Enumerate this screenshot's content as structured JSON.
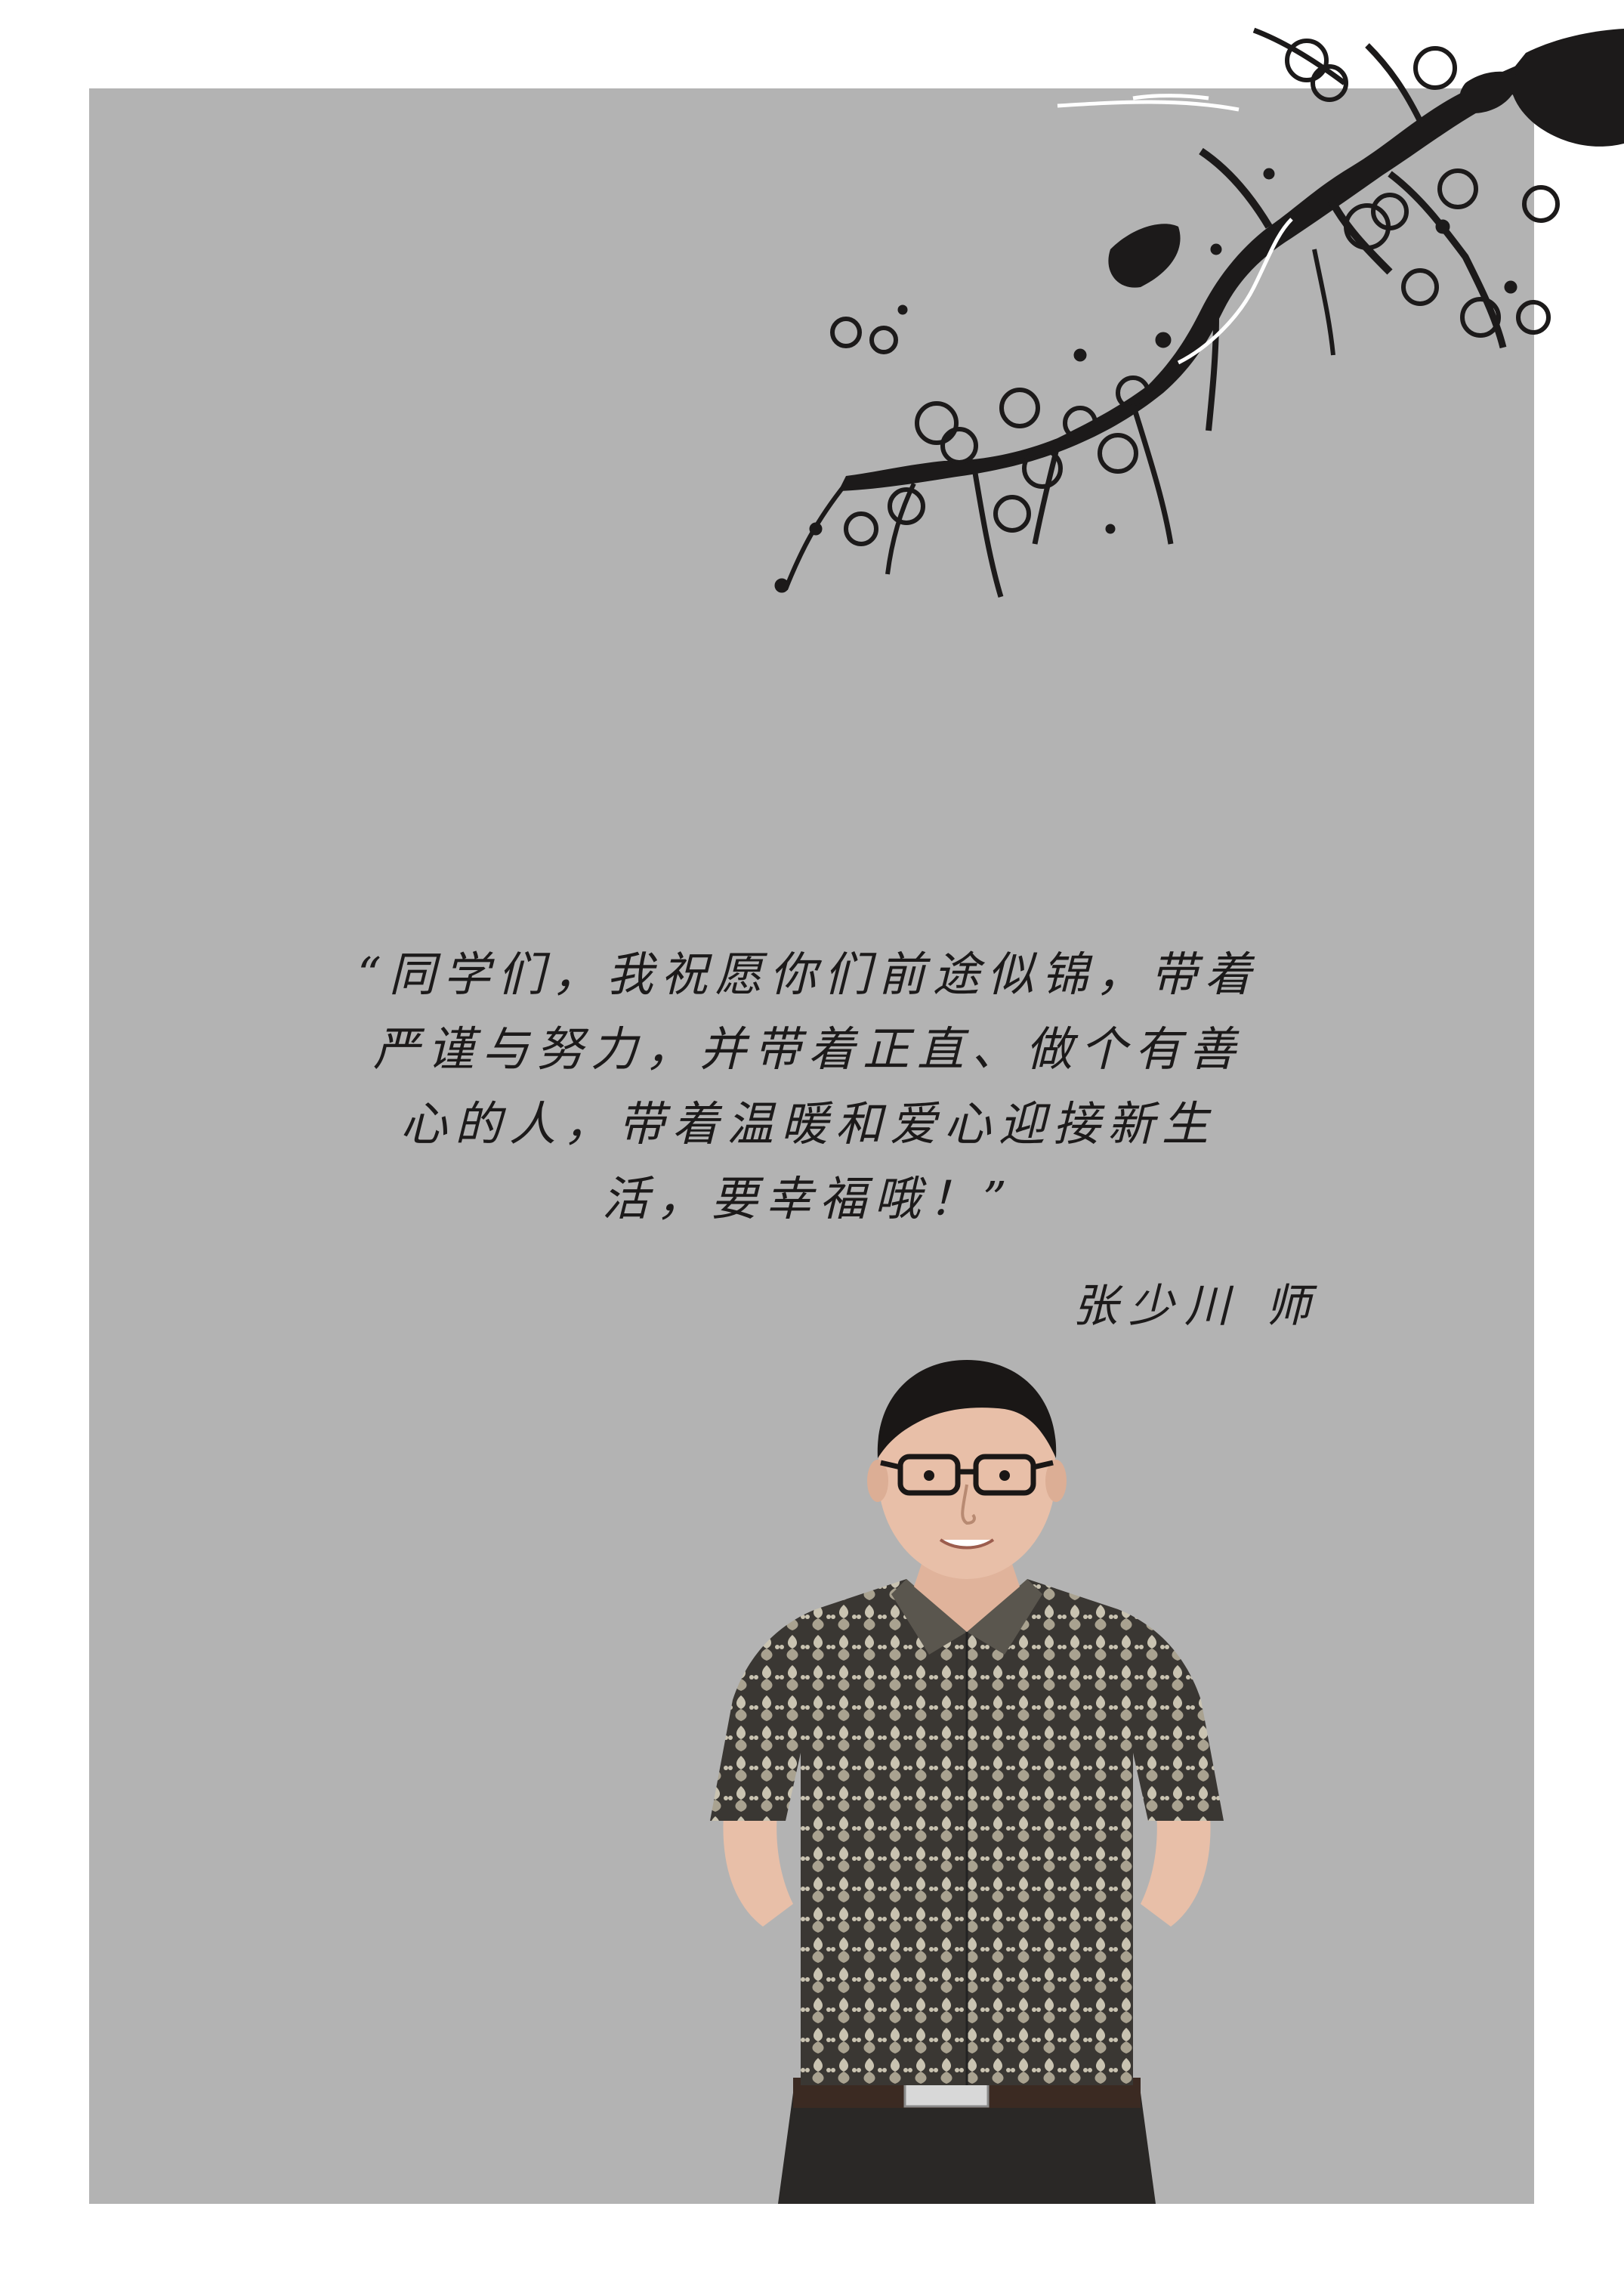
{
  "quote": {
    "lines": [
      "“同学们，我祝愿你们前途似锦，带着",
      "严谨与努力，并带着正直、做个有善",
      "心的人，带着温暖和爱心迎接新生",
      "活，要幸福哦！”"
    ]
  },
  "signature": {
    "text": "张少川 师"
  },
  "colors": {
    "panel": "#b3b3b3",
    "ink": "#1c1a1a",
    "shirt_dark": "#3a3733",
    "shirt_light": "#c9c3b1",
    "pants": "#2a2826",
    "skin": "#e8bfa8"
  },
  "icons": {
    "decoration": "plum-blossom-branch-illustration",
    "photo": "teacher-portrait-photo"
  }
}
